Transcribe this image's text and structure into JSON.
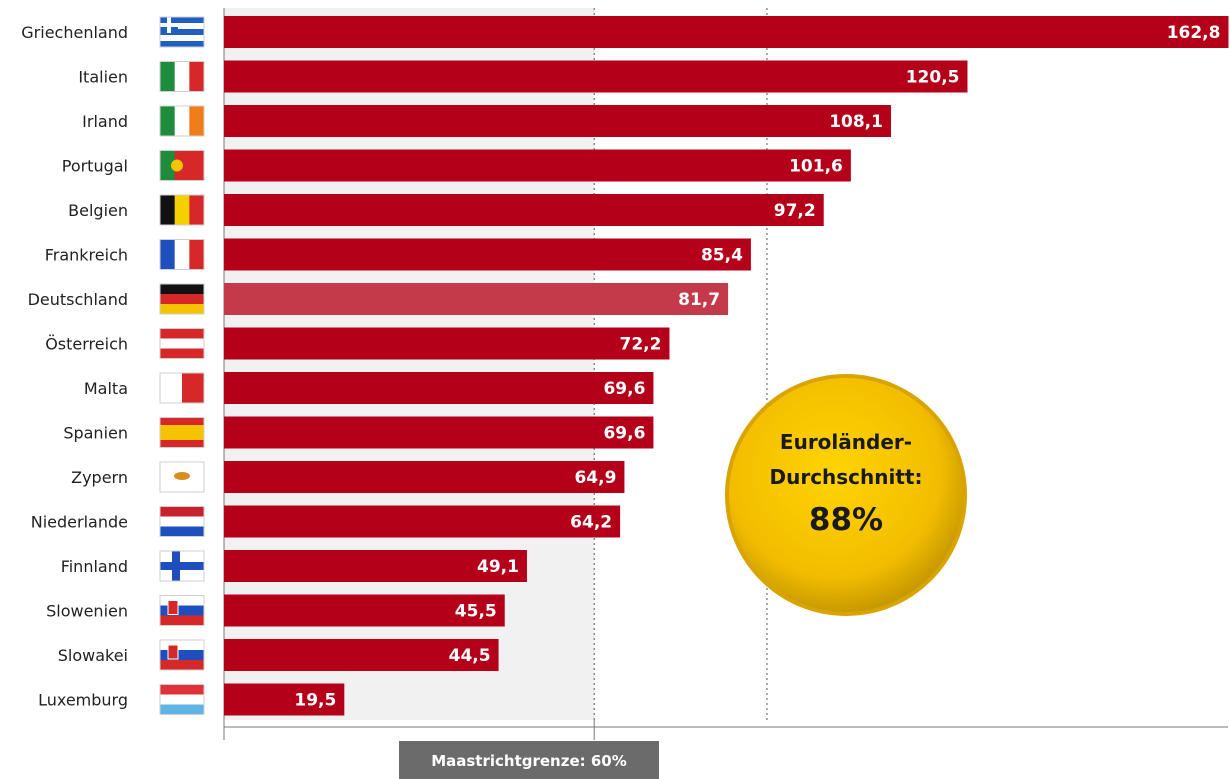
{
  "chart_data": {
    "type": "bar",
    "orientation": "horizontal",
    "categories": [
      "Griechenland",
      "Italien",
      "Irland",
      "Portugal",
      "Belgien",
      "Frankreich",
      "Deutschland",
      "Österreich",
      "Malta",
      "Spanien",
      "Zypern",
      "Niederlande",
      "Finnland",
      "Slowenien",
      "Slowakei",
      "Luxemburg"
    ],
    "values": [
      162.8,
      120.5,
      108.1,
      101.6,
      97.2,
      85.4,
      81.7,
      72.2,
      69.6,
      69.6,
      64.9,
      64.2,
      49.1,
      45.5,
      44.5,
      19.5
    ],
    "value_labels": [
      "162,8",
      "120,5",
      "108,1",
      "101,6",
      "97,2",
      "85,4",
      "81,7",
      "72,2",
      "69,6",
      "69,6",
      "64,9",
      "64,2",
      "49,1",
      "45,5",
      "44,5",
      "19,5"
    ],
    "highlighted_category": "Deutschland",
    "xlim": [
      0,
      163
    ],
    "grid": false,
    "colors": {
      "bar": "#b5001a",
      "highlight": "#c43a4a",
      "shade": "#f1f1f1",
      "badge": "#f5c400",
      "ref_box": "#6b6b6b"
    },
    "reference_lines": [
      {
        "value": 60,
        "label": "Maastrichtgrenze: 60%"
      },
      {
        "value": 88,
        "label": ""
      }
    ],
    "average_badge": {
      "line1": "Euroländer-",
      "line2": "Durchschnitt:",
      "value": "88%"
    }
  },
  "flags": [
    {
      "country": "Griechenland",
      "icon": "greece-flag-icon",
      "stripes": [
        "#1f5fbf",
        "#ffffff",
        "#1f5fbf",
        "#ffffff",
        "#1f5fbf"
      ],
      "dir": "h"
    },
    {
      "country": "Italien",
      "icon": "italy-flag-icon",
      "stripes": [
        "#1e8c3a",
        "#ffffff",
        "#d62828"
      ],
      "dir": "v"
    },
    {
      "country": "Irland",
      "icon": "ireland-flag-icon",
      "stripes": [
        "#1e8c3a",
        "#ffffff",
        "#f07d1a"
      ],
      "dir": "v"
    },
    {
      "country": "Portugal",
      "icon": "portugal-flag-icon",
      "stripes": [
        "#1e8c3a",
        "#d62828",
        "#d62828"
      ],
      "dir": "v"
    },
    {
      "country": "Belgien",
      "icon": "belgium-flag-icon",
      "stripes": [
        "#111111",
        "#f5d000",
        "#d62828"
      ],
      "dir": "v"
    },
    {
      "country": "Frankreich",
      "icon": "france-flag-icon",
      "stripes": [
        "#1f4fbf",
        "#ffffff",
        "#d62828"
      ],
      "dir": "v"
    },
    {
      "country": "Deutschland",
      "icon": "germany-flag-icon",
      "stripes": [
        "#111111",
        "#d62828",
        "#f5c400"
      ],
      "dir": "h"
    },
    {
      "country": "Österreich",
      "icon": "austria-flag-icon",
      "stripes": [
        "#d62828",
        "#ffffff",
        "#d62828"
      ],
      "dir": "h"
    },
    {
      "country": "Malta",
      "icon": "malta-flag-icon",
      "stripes": [
        "#ffffff",
        "#d62828"
      ],
      "dir": "v"
    },
    {
      "country": "Spanien",
      "icon": "spain-flag-icon",
      "stripes": [
        "#d62828",
        "#f5c400",
        "#f5c400",
        "#d62828"
      ],
      "dir": "h"
    },
    {
      "country": "Zypern",
      "icon": "cyprus-flag-icon",
      "stripes": [
        "#ffffff"
      ],
      "dir": "h"
    },
    {
      "country": "Niederlande",
      "icon": "netherlands-flag-icon",
      "stripes": [
        "#c8202e",
        "#ffffff",
        "#1f4fbf"
      ],
      "dir": "h"
    },
    {
      "country": "Finnland",
      "icon": "finland-flag-icon",
      "stripes": [
        "#ffffff"
      ],
      "dir": "h"
    },
    {
      "country": "Slowenien",
      "icon": "slovenia-flag-icon",
      "stripes": [
        "#ffffff",
        "#1f4fbf",
        "#d62828"
      ],
      "dir": "h"
    },
    {
      "country": "Slowakei",
      "icon": "slovakia-flag-icon",
      "stripes": [
        "#ffffff",
        "#1f4fbf",
        "#d62828"
      ],
      "dir": "h"
    },
    {
      "country": "Luxemburg",
      "icon": "luxembourg-flag-icon",
      "stripes": [
        "#e0303a",
        "#ffffff",
        "#5fb4e6"
      ],
      "dir": "h"
    }
  ]
}
